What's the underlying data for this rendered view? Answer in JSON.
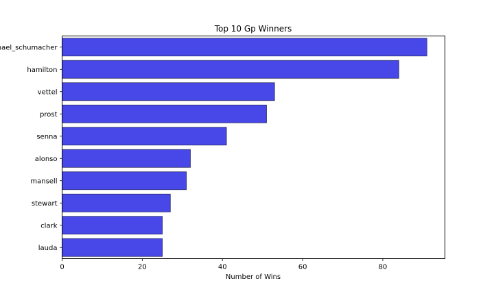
{
  "chart_data": {
    "type": "bar",
    "orientation": "horizontal",
    "title": "Top 10 Gp Winners",
    "xlabel": "Number of Wins",
    "ylabel": "",
    "categories": [
      "michael_schumacher",
      "hamilton",
      "vettel",
      "prost",
      "senna",
      "alonso",
      "mansell",
      "stewart",
      "clark",
      "lauda"
    ],
    "values": [
      91,
      84,
      53,
      51,
      41,
      32,
      31,
      27,
      25,
      25
    ],
    "xlim": [
      0,
      95.5
    ],
    "xticks": [
      0,
      20,
      40,
      60,
      80
    ],
    "grid": false,
    "bar_color": "#4848e8",
    "bar_edge_color": "#2a2a66"
  }
}
